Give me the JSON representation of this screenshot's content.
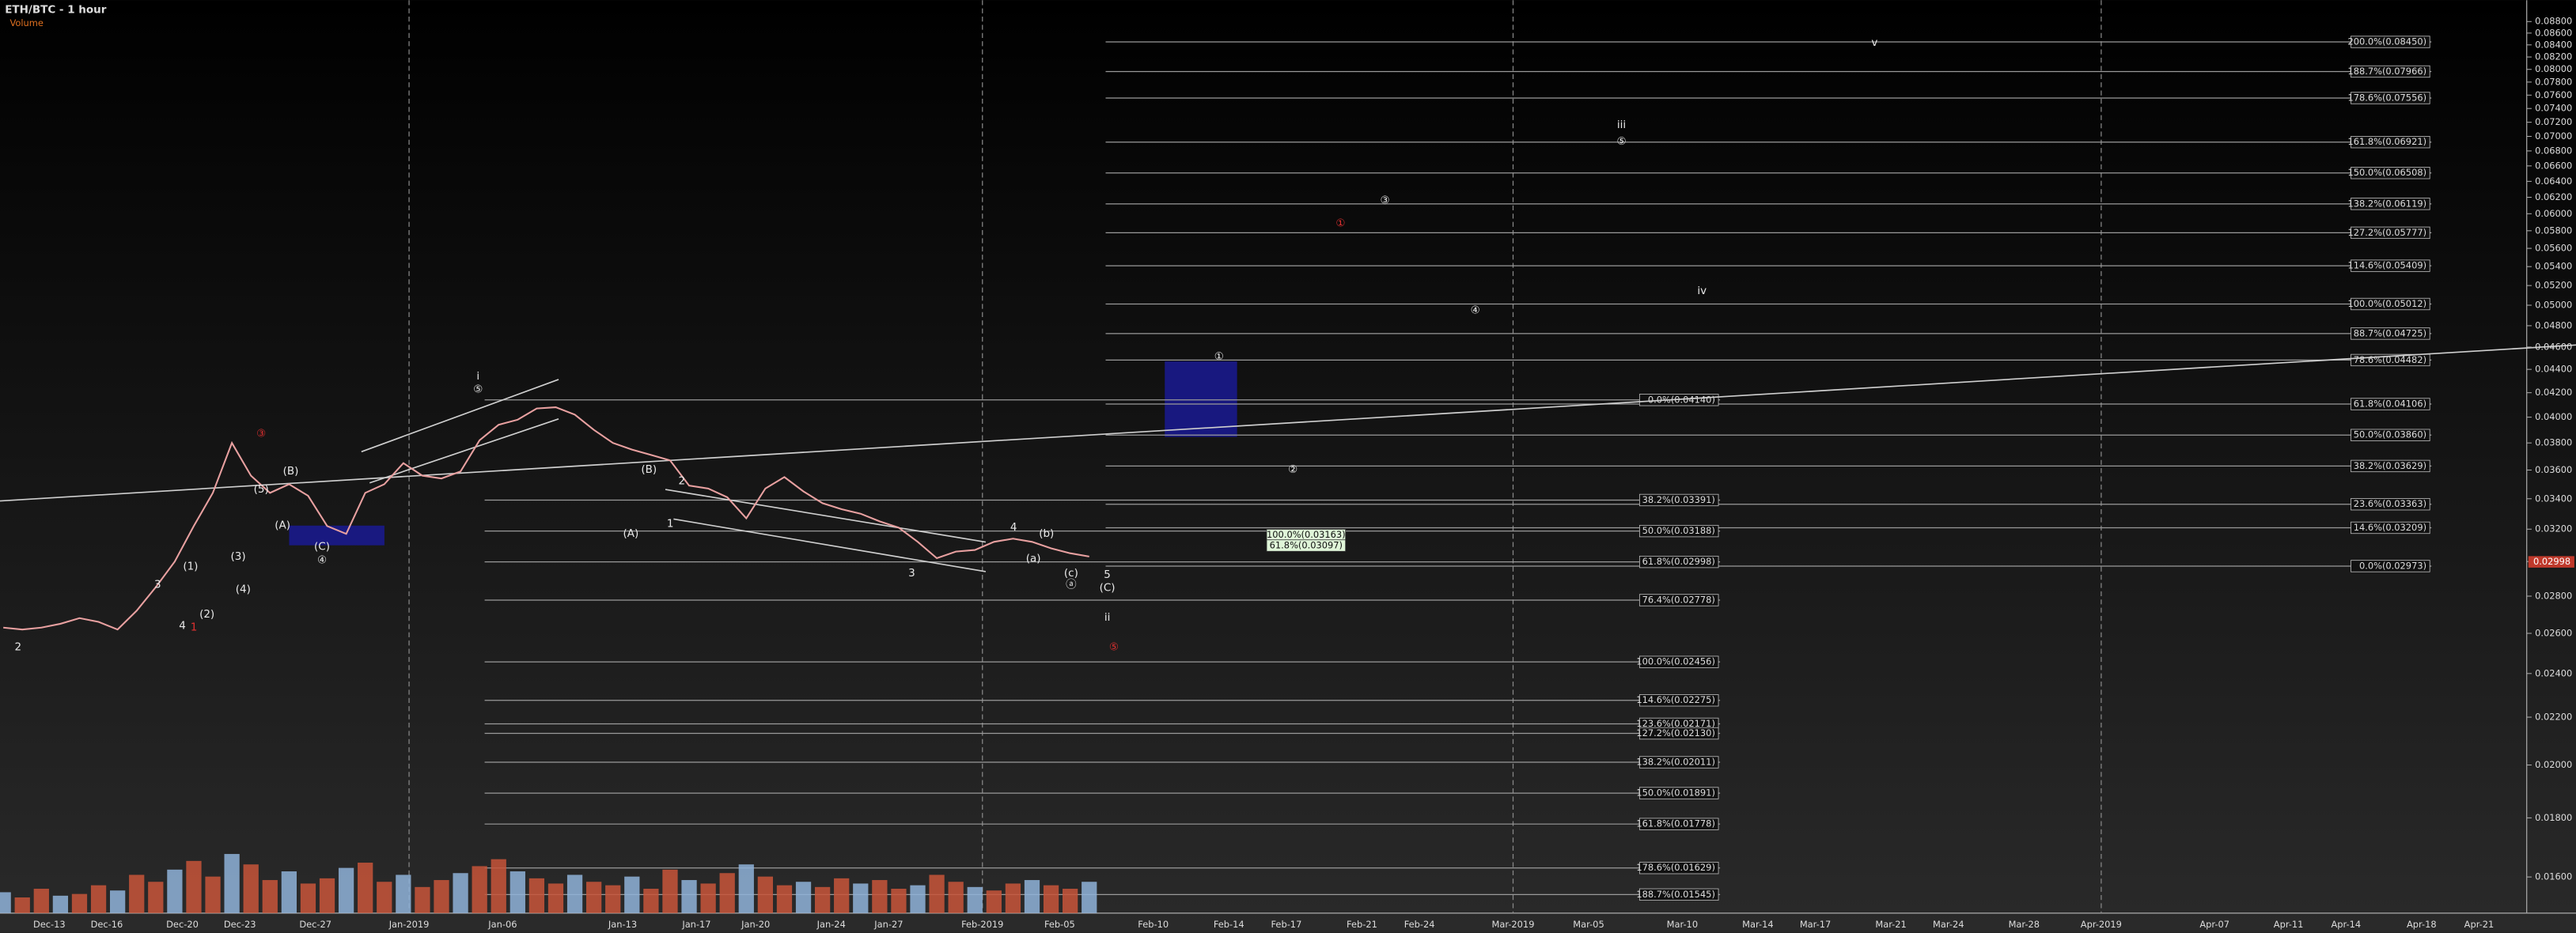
{
  "chart_data": {
    "type": "line",
    "title": "ETH/BTC - 1 hour",
    "subtitle": "Volume",
    "color": "#e8a0a0",
    "log_scale": true,
    "ylim": [
      0.016,
      0.088
    ],
    "yticks": [
      {
        "value": 0.016,
        "label": "0.01600"
      },
      {
        "value": 0.018,
        "label": "0.01800"
      },
      {
        "value": 0.02,
        "label": "0.02000"
      },
      {
        "value": 0.022,
        "label": "0.02200"
      },
      {
        "value": 0.024,
        "label": "0.02400"
      },
      {
        "value": 0.026,
        "label": "0.02600"
      },
      {
        "value": 0.028,
        "label": "0.02800"
      },
      {
        "value": 0.03,
        "label": "0.03000"
      },
      {
        "value": 0.032,
        "label": "0.03200"
      },
      {
        "value": 0.034,
        "label": "0.03400"
      },
      {
        "value": 0.036,
        "label": "0.03600"
      },
      {
        "value": 0.038,
        "label": "0.03800"
      },
      {
        "value": 0.04,
        "label": "0.04000"
      },
      {
        "value": 0.042,
        "label": "0.04200"
      },
      {
        "value": 0.044,
        "label": "0.04400"
      },
      {
        "value": 0.046,
        "label": "0.04600"
      },
      {
        "value": 0.048,
        "label": "0.04800"
      },
      {
        "value": 0.05,
        "label": "0.05000"
      },
      {
        "value": 0.052,
        "label": "0.05200"
      },
      {
        "value": 0.054,
        "label": "0.05400"
      },
      {
        "value": 0.056,
        "label": "0.05600"
      },
      {
        "value": 0.058,
        "label": "0.05800"
      },
      {
        "value": 0.06,
        "label": "0.06000"
      },
      {
        "value": 0.062,
        "label": "0.06200"
      },
      {
        "value": 0.064,
        "label": "0.06400"
      },
      {
        "value": 0.066,
        "label": "0.06600"
      },
      {
        "value": 0.068,
        "label": "0.06800"
      },
      {
        "value": 0.07,
        "label": "0.07000"
      },
      {
        "value": 0.072,
        "label": "0.07200"
      },
      {
        "value": 0.074,
        "label": "0.07400"
      },
      {
        "value": 0.076,
        "label": "0.07600"
      },
      {
        "value": 0.078,
        "label": "0.07800"
      },
      {
        "value": 0.08,
        "label": "0.08000"
      },
      {
        "value": 0.082,
        "label": "0.08200"
      },
      {
        "value": 0.084,
        "label": "0.08400"
      },
      {
        "value": 0.086,
        "label": "0.08600"
      },
      {
        "value": 0.088,
        "label": "0.08800"
      }
    ],
    "x_axis_labels": [
      "Dec-13",
      "Dec-16",
      "Dec-20",
      "Dec-23",
      "Dec-27",
      "Jan-2019",
      "Jan-06",
      "Jan-13",
      "Jan-17",
      "Jan-20",
      "Jan-24",
      "Jan-27",
      "Feb-2019",
      "Feb-05",
      "Feb-10",
      "Feb-14",
      "Feb-17",
      "Feb-21",
      "Feb-24",
      "Mar-2019",
      "Mar-05",
      "Mar-10",
      "Mar-14",
      "Mar-17",
      "Mar-21",
      "Mar-24",
      "Mar-28",
      "Apr-2019",
      "Apr-07",
      "Apr-11",
      "Apr-14",
      "Apr-18",
      "Apr-21"
    ],
    "values": [
      0.0263,
      0.0262,
      0.0263,
      0.0265,
      0.0268,
      0.0266,
      0.0262,
      0.0272,
      0.0285,
      0.03,
      0.0322,
      0.0344,
      0.038,
      0.0356,
      0.0344,
      0.035,
      0.0342,
      0.0322,
      0.0317,
      0.0344,
      0.035,
      0.0365,
      0.0356,
      0.0354,
      0.0359,
      0.0382,
      0.0394,
      0.0398,
      0.0407,
      0.0408,
      0.0402,
      0.039,
      0.038,
      0.0375,
      0.0371,
      0.0367,
      0.0349,
      0.0347,
      0.0341,
      0.0327,
      0.0347,
      0.0355,
      0.0345,
      0.0337,
      0.0333,
      0.033,
      0.0325,
      0.0321,
      0.0312,
      0.0302,
      0.0306,
      0.0307,
      0.0312,
      0.0314,
      0.0312,
      0.0308,
      0.0305,
      0.0303
    ],
    "volume": [
      12,
      9,
      14,
      10,
      11,
      16,
      13,
      22,
      18,
      25,
      30,
      21,
      34,
      28,
      19,
      24,
      17,
      20,
      26,
      29,
      18,
      22,
      15,
      19,
      23,
      27,
      31,
      24,
      20,
      17,
      22,
      18,
      16,
      21,
      14,
      25,
      19,
      17,
      23,
      28,
      21,
      16,
      18,
      15,
      20,
      17,
      19,
      14,
      16,
      22,
      18,
      15,
      13,
      17,
      19,
      16,
      14,
      18
    ],
    "fib_right": [
      {
        "value": 0.0845,
        "label": "200.0%(0.08450)"
      },
      {
        "value": 0.07966,
        "label": "188.7%(0.07966)"
      },
      {
        "value": 0.07556,
        "label": "178.6%(0.07556)"
      },
      {
        "value": 0.06921,
        "label": "161.8%(0.06921)"
      },
      {
        "value": 0.06508,
        "label": "150.0%(0.06508)"
      },
      {
        "value": 0.06119,
        "label": "138.2%(0.06119)"
      },
      {
        "value": 0.05777,
        "label": "127.2%(0.05777)"
      },
      {
        "value": 0.05409,
        "label": "114.6%(0.05409)"
      },
      {
        "value": 0.05012,
        "label": "100.0%(0.05012)"
      },
      {
        "value": 0.04725,
        "label": "88.7%(0.04725)"
      },
      {
        "value": 0.04482,
        "label": "78.6%(0.04482)"
      },
      {
        "value": 0.04106,
        "label": "61.8%(0.04106)"
      },
      {
        "value": 0.0386,
        "label": "50.0%(0.03860)"
      },
      {
        "value": 0.03629,
        "label": "38.2%(0.03629)"
      },
      {
        "value": 0.03363,
        "label": "23.6%(0.03363)"
      },
      {
        "value": 0.03209,
        "label": "14.6%(0.03209)"
      },
      {
        "value": 0.02973,
        "label": "0.0%(0.02973)"
      }
    ],
    "fib_middle": [
      {
        "value": 0.0414,
        "label": "0.0%(0.04140)"
      },
      {
        "value": 0.03391,
        "label": "38.2%(0.03391)"
      },
      {
        "value": 0.03188,
        "label": "50.0%(0.03188)"
      },
      {
        "value": 0.02998,
        "label": "61.8%(0.02998)"
      },
      {
        "value": 0.02778,
        "label": "76.4%(0.02778)"
      },
      {
        "value": 0.02456,
        "label": "100.0%(0.02456)"
      },
      {
        "value": 0.02275,
        "label": "114.6%(0.02275)"
      },
      {
        "value": 0.02171,
        "label": "123.6%(0.02171)"
      },
      {
        "value": 0.0213,
        "label": "127.2%(0.02130)"
      },
      {
        "value": 0.02011,
        "label": "138.2%(0.02011)"
      },
      {
        "value": 0.01891,
        "label": "150.0%(0.01891)"
      },
      {
        "value": 0.01778,
        "label": "161.8%(0.01778)"
      },
      {
        "value": 0.01629,
        "label": "178.6%(0.01629)"
      },
      {
        "value": 0.01545,
        "label": "188.7%(0.01545)"
      }
    ],
    "target_labels": [
      {
        "value": 0.03163,
        "label": "100.0%(0.03163)"
      },
      {
        "value": 0.03097,
        "label": "61.8%(0.03097)"
      }
    ],
    "last_price": {
      "value": 0.02998,
      "label": "0.02998"
    },
    "wave_labels": [
      "2",
      "3",
      "4",
      "(1)",
      "(2)",
      "(3)",
      "(4)",
      "(5)",
      "(B)",
      "(A)",
      "(C)",
      "④",
      "i",
      "⑤",
      "(A)",
      "(B)",
      "1",
      "2",
      "3",
      "4",
      "(b)",
      "(a)",
      "(c)",
      "ⓐ",
      "5",
      "(C)",
      "ii",
      "①",
      "②",
      "③",
      "④",
      "iii",
      "⑤",
      "iv",
      "v",
      "③",
      "1",
      "①",
      "⑤"
    ]
  }
}
